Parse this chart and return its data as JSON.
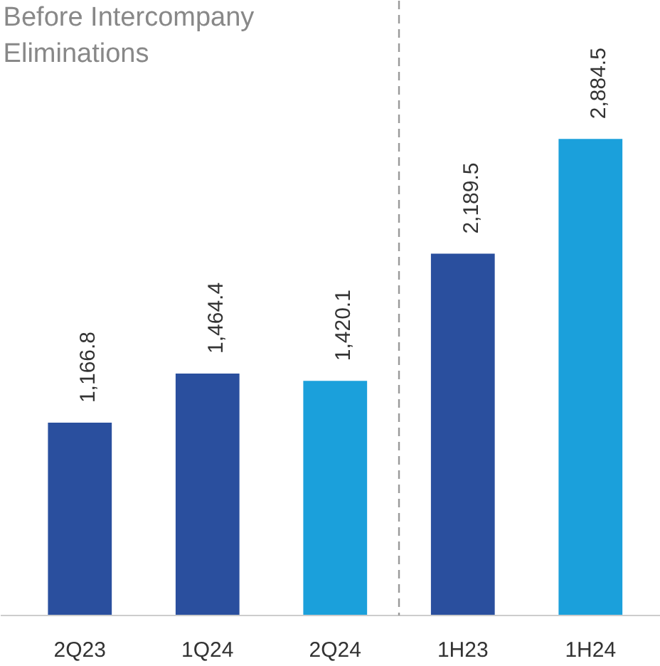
{
  "chart_data": {
    "type": "bar",
    "subtitle": "Before Intercompany\nEliminations",
    "categories": [
      "2Q23",
      "1Q24",
      "2Q24",
      "1H23",
      "1H24"
    ],
    "values": [
      1166.8,
      1464.4,
      1420.1,
      2189.5,
      2884.5
    ],
    "colors": [
      "#2a4f9e",
      "#2a4f9e",
      "#1ba0db",
      "#2a4f9e",
      "#1ba0db"
    ],
    "value_labels": [
      "1,166.8",
      "1,464.4",
      "1,420.1",
      "2,189.5",
      "2,884.5"
    ],
    "grid": false
  }
}
